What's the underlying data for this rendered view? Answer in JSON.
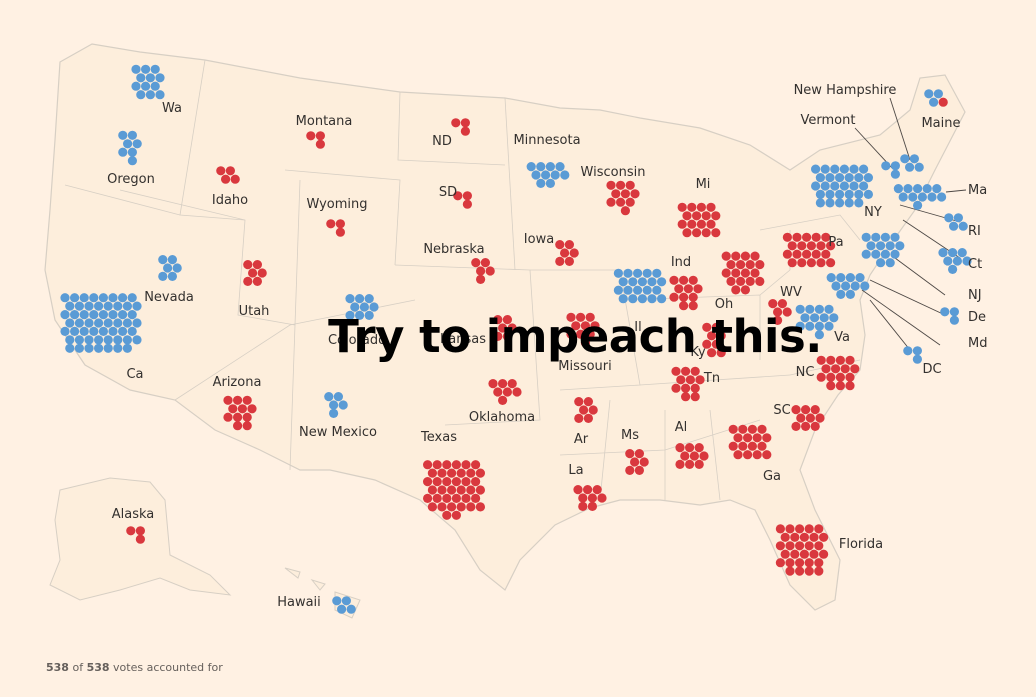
{
  "headline": "Try to impeach this.",
  "footer": {
    "counted": "538",
    "of_text": " of ",
    "total": "538",
    "suffix": " votes accounted for"
  },
  "colors": {
    "background": "#fff1e3",
    "dem": "#5a9bd5",
    "rep": "#d9383e",
    "land": "#fdeedc",
    "border": "#d7cfc4",
    "label": "#33302e"
  },
  "states": [
    {
      "name": "Wa",
      "votes": 12,
      "party": "dem"
    },
    {
      "name": "Oregon",
      "votes": 7,
      "party": "dem"
    },
    {
      "name": "Ca",
      "votes": 55,
      "party": "dem"
    },
    {
      "name": "Nevada",
      "votes": 6,
      "party": "dem"
    },
    {
      "name": "Idaho",
      "votes": 4,
      "party": "rep"
    },
    {
      "name": "Montana",
      "votes": 3,
      "party": "rep"
    },
    {
      "name": "Wyoming",
      "votes": 3,
      "party": "rep"
    },
    {
      "name": "Utah",
      "votes": 6,
      "party": "rep"
    },
    {
      "name": "Arizona",
      "votes": 11,
      "party": "rep"
    },
    {
      "name": "Colorado",
      "votes": 9,
      "party": "dem"
    },
    {
      "name": "New Mexico",
      "votes": 5,
      "party": "dem"
    },
    {
      "name": "ND",
      "votes": 3,
      "party": "rep"
    },
    {
      "name": "SD",
      "votes": 3,
      "party": "rep"
    },
    {
      "name": "Nebraska",
      "votes": 5,
      "party": "rep"
    },
    {
      "name": "Kansas",
      "votes": 6,
      "party": "rep"
    },
    {
      "name": "Oklahoma",
      "votes": 7,
      "party": "rep"
    },
    {
      "name": "Texas",
      "votes": 38,
      "party": "rep"
    },
    {
      "name": "Minnesota",
      "votes": 10,
      "party": "dem"
    },
    {
      "name": "Iowa",
      "votes": 6,
      "party": "rep"
    },
    {
      "name": "Missouri",
      "votes": 10,
      "party": "rep"
    },
    {
      "name": "Ar",
      "votes": 6,
      "party": "rep"
    },
    {
      "name": "La",
      "votes": 8,
      "party": "rep"
    },
    {
      "name": "Wisconsin",
      "votes": 10,
      "party": "rep"
    },
    {
      "name": "Il",
      "votes": 20,
      "party": "dem"
    },
    {
      "name": "Mi",
      "votes": 16,
      "party": "rep"
    },
    {
      "name": "Ind",
      "votes": 11,
      "party": "rep"
    },
    {
      "name": "Oh",
      "votes": 18,
      "party": "rep"
    },
    {
      "name": "Ky",
      "votes": 8,
      "party": "rep"
    },
    {
      "name": "Tn",
      "votes": 11,
      "party": "rep"
    },
    {
      "name": "Ms",
      "votes": 6,
      "party": "rep"
    },
    {
      "name": "Al",
      "votes": 9,
      "party": "rep"
    },
    {
      "name": "Ga",
      "votes": 16,
      "party": "rep"
    },
    {
      "name": "Florida",
      "votes": 29,
      "party": "rep"
    },
    {
      "name": "SC",
      "votes": 9,
      "party": "rep"
    },
    {
      "name": "NC",
      "votes": 15,
      "party": "rep"
    },
    {
      "name": "Va",
      "votes": 13,
      "party": "dem"
    },
    {
      "name": "WV",
      "votes": 5,
      "party": "rep"
    },
    {
      "name": "Pa",
      "votes": 20,
      "party": "rep"
    },
    {
      "name": "NY",
      "votes": 29,
      "party": "dem"
    },
    {
      "name": "Vermont",
      "votes": 3,
      "party": "dem"
    },
    {
      "name": "New Hampshire",
      "votes": 4,
      "party": "dem"
    },
    {
      "name": "Maine",
      "votes": 4,
      "party": "dem",
      "split": 1
    },
    {
      "name": "Ma",
      "votes": 11,
      "party": "dem"
    },
    {
      "name": "RI",
      "votes": 4,
      "party": "dem"
    },
    {
      "name": "Ct",
      "votes": 7,
      "party": "dem"
    },
    {
      "name": "NJ",
      "votes": 14,
      "party": "dem"
    },
    {
      "name": "De",
      "votes": 3,
      "party": "dem"
    },
    {
      "name": "Md",
      "votes": 10,
      "party": "dem"
    },
    {
      "name": "DC",
      "votes": 3,
      "party": "dem"
    },
    {
      "name": "Alaska",
      "votes": 3,
      "party": "rep"
    },
    {
      "name": "Hawaii",
      "votes": 4,
      "party": "dem"
    }
  ]
}
